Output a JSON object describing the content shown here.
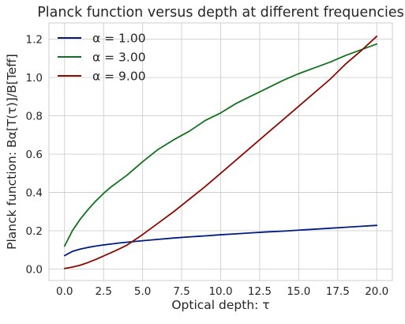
{
  "chart_data": {
    "type": "line",
    "title": "Planck function versus depth at different frequencies",
    "xlabel": "Optical depth: τ",
    "ylabel": "Planck function: Bα[T(τ)]/B[Teff]",
    "xlim": [
      -1.0,
      21.0
    ],
    "ylim": [
      -0.06,
      1.285
    ],
    "xticks": [
      0.0,
      2.5,
      5.0,
      7.5,
      10.0,
      12.5,
      15.0,
      17.5,
      20.0
    ],
    "xtick_labels": [
      "0.0",
      "2.5",
      "5.0",
      "7.5",
      "10.0",
      "12.5",
      "15.0",
      "17.5",
      "20.0"
    ],
    "yticks": [
      0.0,
      0.2,
      0.4,
      0.6,
      0.8,
      1.0,
      1.2
    ],
    "ytick_labels": [
      "0.0",
      "0.2",
      "0.4",
      "0.6",
      "0.8",
      "1.0",
      "1.2"
    ],
    "grid": true,
    "legend_position": "top-left",
    "x": [
      0,
      0.5,
      1,
      1.5,
      2,
      2.5,
      3,
      3.5,
      4,
      5,
      6,
      7,
      8,
      9,
      10,
      11,
      12,
      13,
      14,
      15,
      16,
      17,
      18,
      19,
      20
    ],
    "series": [
      {
        "name": "α = 1.00",
        "color": "#001c7f",
        "values": [
          0.07,
          0.092,
          0.104,
          0.113,
          0.12,
          0.126,
          0.131,
          0.136,
          0.14,
          0.148,
          0.155,
          0.162,
          0.168,
          0.173,
          0.179,
          0.184,
          0.189,
          0.194,
          0.198,
          0.203,
          0.208,
          0.213,
          0.218,
          0.223,
          0.228
        ]
      },
      {
        "name": "α = 3.00",
        "color": "#12711c",
        "values": [
          0.12,
          0.2,
          0.26,
          0.31,
          0.355,
          0.395,
          0.43,
          0.46,
          0.49,
          0.56,
          0.625,
          0.675,
          0.72,
          0.775,
          0.815,
          0.865,
          0.905,
          0.945,
          0.985,
          1.02,
          1.05,
          1.08,
          1.115,
          1.145,
          1.175
        ]
      },
      {
        "name": "α = 9.00",
        "color": "#8c0800",
        "values": [
          0.003,
          0.01,
          0.02,
          0.034,
          0.05,
          0.068,
          0.086,
          0.105,
          0.125,
          0.18,
          0.24,
          0.3,
          0.365,
          0.43,
          0.5,
          0.57,
          0.64,
          0.71,
          0.78,
          0.85,
          0.92,
          0.99,
          1.07,
          1.14,
          1.215
        ]
      }
    ]
  }
}
